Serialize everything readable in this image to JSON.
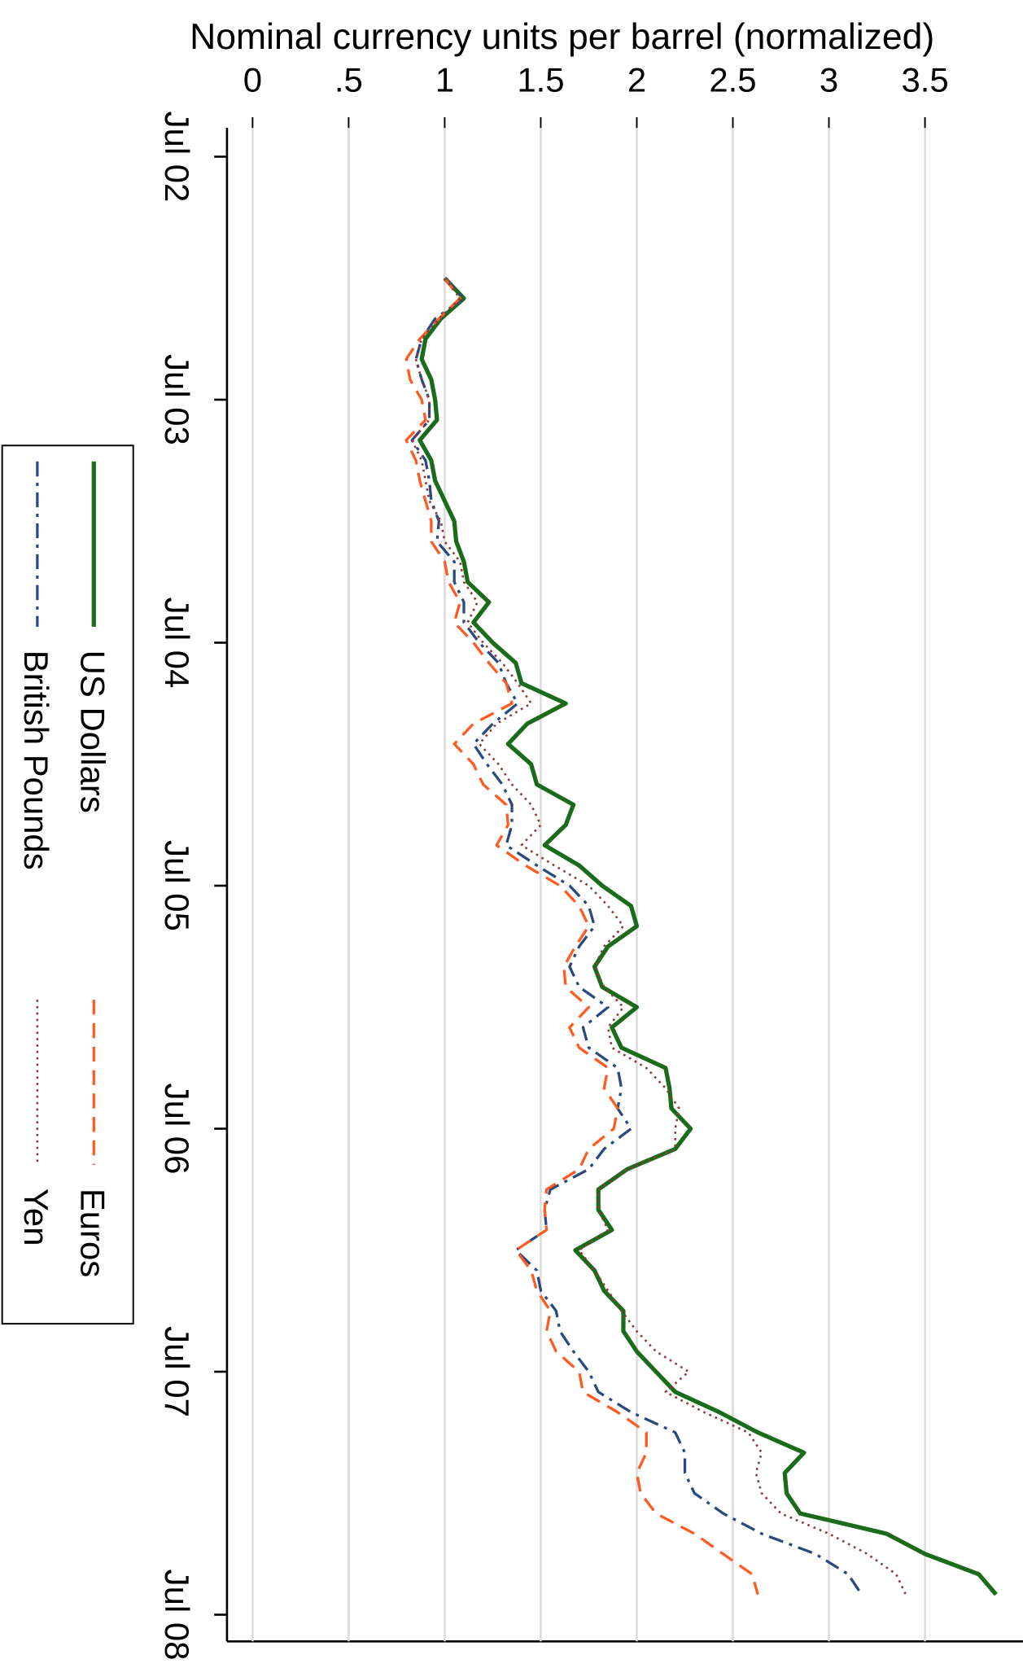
{
  "chart_data": {
    "type": "line",
    "y_label": "Nominal currency units per barrel (normalized)",
    "x": [
      "Jan 03",
      "Feb 03",
      "Mar 03",
      "Apr 03",
      "May 03",
      "Jun 03",
      "Jul 03",
      "Aug 03",
      "Sep 03",
      "Oct 03",
      "Nov 03",
      "Dec 03",
      "Jan 04",
      "Feb 04",
      "Mar 04",
      "Apr 04",
      "May 04",
      "Jun 04",
      "Jul 04",
      "Aug 04",
      "Sep 04",
      "Oct 04",
      "Nov 04",
      "Dec 04",
      "Jan 05",
      "Feb 05",
      "Mar 05",
      "Apr 05",
      "May 05",
      "Jun 05",
      "Jul 05",
      "Aug 05",
      "Sep 05",
      "Oct 05",
      "Nov 05",
      "Dec 05",
      "Jan 06",
      "Feb 06",
      "Mar 06",
      "Apr 06",
      "May 06",
      "Jun 06",
      "Jul 06",
      "Aug 06",
      "Sep 06",
      "Oct 06",
      "Nov 06",
      "Dec 06",
      "Jan 07",
      "Feb 07",
      "Mar 07",
      "Apr 07",
      "May 07",
      "Jun 07",
      "Jul 07",
      "Aug 07",
      "Sep 07",
      "Oct 07",
      "Nov 07",
      "Dec 07",
      "Jan 08",
      "Feb 08",
      "Mar 08",
      "Apr 08",
      "May 08",
      "Jun 08"
    ],
    "xlim": [
      "Jul 02",
      "Jul 08"
    ],
    "xticks": [
      "Jul 02",
      "Jul 03",
      "Jul 04",
      "Jul 05",
      "Jul 06",
      "Jul 07",
      "Jul 08"
    ],
    "ylim": [
      -0.13,
      4.0
    ],
    "yticks": [
      0,
      {
        "value": 0.5,
        "label": ".5"
      },
      1,
      1.5,
      2,
      2.5,
      3,
      3.5
    ],
    "grid": true,
    "legend": "left",
    "series": [
      {
        "name": "US Dollars",
        "color": "#1a6b1a",
        "values": [
          1.0,
          1.1,
          0.98,
          0.9,
          0.88,
          0.93,
          0.95,
          0.96,
          0.87,
          0.93,
          0.95,
          1.0,
          1.05,
          1.06,
          1.1,
          1.12,
          1.23,
          1.15,
          1.25,
          1.37,
          1.4,
          1.63,
          1.43,
          1.33,
          1.45,
          1.48,
          1.67,
          1.63,
          1.52,
          1.7,
          1.82,
          1.97,
          2.0,
          1.85,
          1.78,
          1.82,
          2.0,
          1.87,
          1.92,
          2.15,
          2.17,
          2.18,
          2.28,
          2.2,
          1.95,
          1.8,
          1.8,
          1.87,
          1.68,
          1.78,
          1.83,
          1.93,
          1.93,
          2.0,
          2.1,
          2.2,
          2.43,
          2.63,
          2.87,
          2.77,
          2.78,
          2.85,
          3.3,
          3.5,
          3.78,
          3.87
        ]
      },
      {
        "name": "British Pounds",
        "color": "#2a4a7f",
        "values": [
          1.0,
          1.1,
          0.95,
          0.88,
          0.85,
          0.88,
          0.92,
          0.92,
          0.83,
          0.9,
          0.92,
          0.93,
          0.97,
          0.96,
          1.05,
          1.05,
          1.1,
          1.1,
          1.18,
          1.28,
          1.32,
          1.38,
          1.25,
          1.15,
          1.22,
          1.3,
          1.35,
          1.35,
          1.32,
          1.48,
          1.65,
          1.75,
          1.78,
          1.7,
          1.65,
          1.7,
          1.85,
          1.72,
          1.75,
          1.9,
          1.92,
          1.9,
          1.97,
          1.83,
          1.75,
          1.55,
          1.52,
          1.53,
          1.37,
          1.48,
          1.5,
          1.58,
          1.6,
          1.67,
          1.75,
          1.8,
          1.97,
          2.2,
          2.25,
          2.25,
          2.3,
          2.45,
          2.65,
          2.93,
          3.1,
          3.17
        ]
      },
      {
        "name": "Euros",
        "color": "#ff5a1f",
        "values": [
          1.0,
          1.08,
          0.97,
          0.87,
          0.8,
          0.82,
          0.88,
          0.9,
          0.8,
          0.85,
          0.87,
          0.9,
          0.93,
          0.93,
          1.0,
          1.02,
          1.08,
          1.05,
          1.15,
          1.23,
          1.32,
          1.35,
          1.15,
          1.05,
          1.15,
          1.2,
          1.32,
          1.33,
          1.27,
          1.42,
          1.6,
          1.7,
          1.75,
          1.68,
          1.62,
          1.63,
          1.75,
          1.65,
          1.7,
          1.85,
          1.83,
          1.9,
          1.88,
          1.75,
          1.7,
          1.53,
          1.52,
          1.53,
          1.37,
          1.45,
          1.48,
          1.55,
          1.53,
          1.58,
          1.7,
          1.72,
          1.9,
          2.05,
          2.05,
          2.0,
          2.02,
          2.1,
          2.3,
          2.45,
          2.6,
          2.63
        ]
      },
      {
        "name": "Yen",
        "color": "#8b3a3a",
        "values": [
          1.0,
          1.08,
          0.97,
          0.88,
          0.85,
          0.88,
          0.92,
          0.92,
          0.83,
          0.88,
          0.9,
          0.92,
          0.98,
          1.0,
          1.08,
          1.1,
          1.17,
          1.12,
          1.2,
          1.3,
          1.38,
          1.45,
          1.27,
          1.18,
          1.28,
          1.35,
          1.45,
          1.5,
          1.4,
          1.57,
          1.75,
          1.85,
          1.93,
          1.83,
          1.78,
          1.83,
          1.93,
          1.85,
          1.87,
          2.05,
          2.15,
          2.22,
          2.2,
          2.2,
          1.95,
          1.8,
          1.8,
          1.85,
          1.7,
          1.78,
          1.85,
          1.92,
          2.0,
          2.1,
          2.27,
          2.15,
          2.35,
          2.58,
          2.65,
          2.62,
          2.65,
          2.75,
          3.0,
          3.2,
          3.35,
          3.4
        ]
      }
    ]
  }
}
